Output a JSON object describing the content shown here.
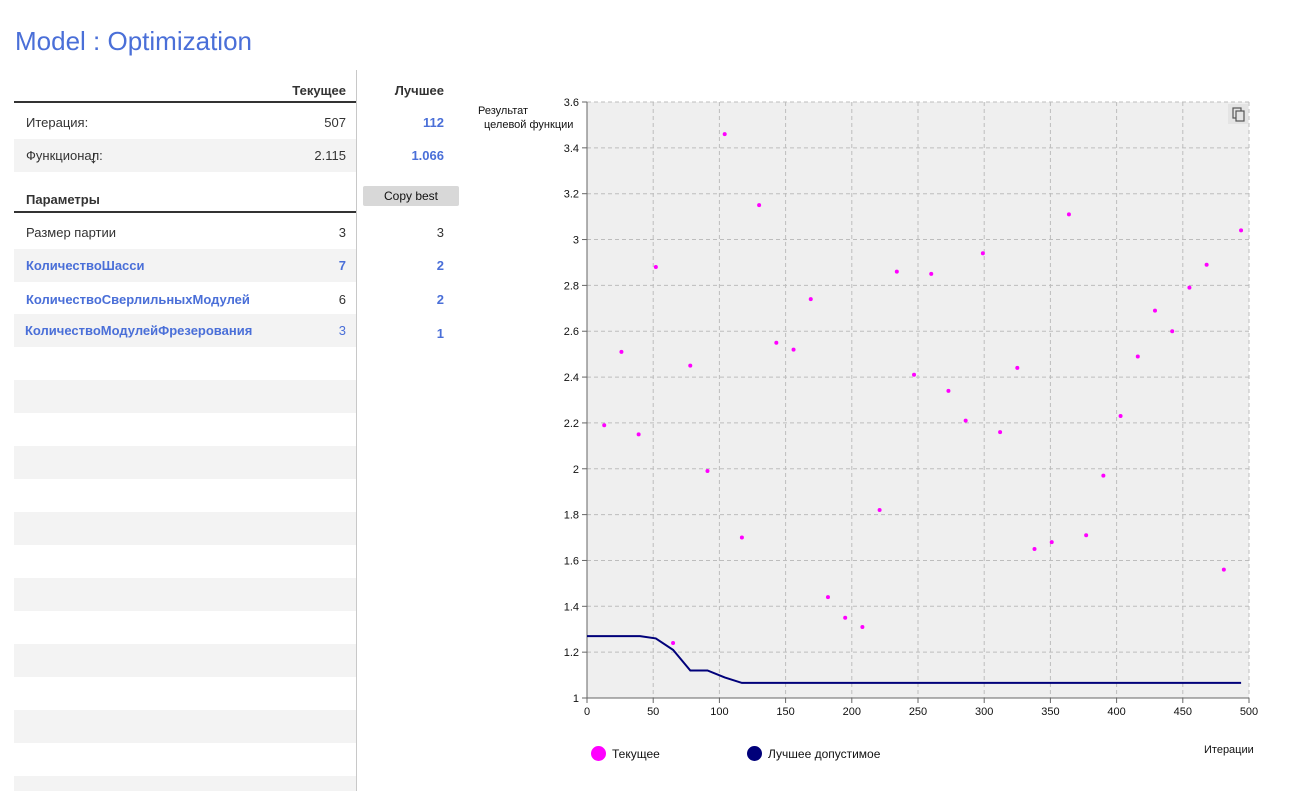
{
  "page": {
    "title": "Model : Optimization"
  },
  "table": {
    "col_current": "Текущее",
    "col_best": "Лучшее",
    "rows": [
      {
        "label": "Итерация:",
        "current": "507",
        "best": "112"
      },
      {
        "label": "Функционал:",
        "current": "2.115",
        "best": "1.066"
      }
    ],
    "params_header": "Параметры",
    "copy_best": "Copy best",
    "params": [
      {
        "label": "Размер партии",
        "current": "3",
        "best": "3"
      },
      {
        "label": "КоличествоШасси",
        "current": "7",
        "best": "2"
      },
      {
        "label": "КоличествоСверлильныхМодулей",
        "current": "6",
        "best": "2"
      },
      {
        "label": "КоличествоМодулейФрезерования",
        "current": "3",
        "best": "1"
      }
    ]
  },
  "chart_data": {
    "type": "scatter",
    "ylabel_line1": "Результат",
    "ylabel_line2": "целевой функции",
    "xlabel": "Итерации",
    "xlim": [
      0,
      500
    ],
    "ylim": [
      1,
      3.6
    ],
    "x_ticks": [
      0,
      50,
      100,
      150,
      200,
      250,
      300,
      350,
      400,
      450,
      500
    ],
    "y_ticks": [
      "1",
      "1.2",
      "1.4",
      "1.6",
      "1.8",
      "2",
      "2.2",
      "2.4",
      "2.6",
      "2.8",
      "3",
      "3.2",
      "3.4",
      "3.6"
    ],
    "grid": true,
    "legend_position": "bottom",
    "series": [
      {
        "name": "Текущее",
        "type": "scatter",
        "color": "#ff00ff",
        "points": [
          [
            13,
            2.19
          ],
          [
            26,
            2.51
          ],
          [
            39,
            2.15
          ],
          [
            52,
            2.88
          ],
          [
            65,
            1.24
          ],
          [
            78,
            2.45
          ],
          [
            91,
            1.99
          ],
          [
            104,
            3.46
          ],
          [
            117,
            1.7
          ],
          [
            130,
            3.15
          ],
          [
            143,
            2.55
          ],
          [
            156,
            2.52
          ],
          [
            169,
            2.74
          ],
          [
            182,
            1.44
          ],
          [
            195,
            1.35
          ],
          [
            208,
            1.31
          ],
          [
            221,
            1.82
          ],
          [
            234,
            2.86
          ],
          [
            247,
            2.41
          ],
          [
            260,
            2.85
          ],
          [
            273,
            2.34
          ],
          [
            286,
            2.21
          ],
          [
            299,
            2.94
          ],
          [
            312,
            2.16
          ],
          [
            325,
            2.44
          ],
          [
            338,
            1.65
          ],
          [
            351,
            1.68
          ],
          [
            364,
            3.11
          ],
          [
            377,
            1.71
          ],
          [
            390,
            1.97
          ],
          [
            403,
            2.23
          ],
          [
            416,
            2.49
          ],
          [
            429,
            2.69
          ],
          [
            442,
            2.6
          ],
          [
            455,
            2.79
          ],
          [
            468,
            2.89
          ],
          [
            481,
            1.56
          ],
          [
            494,
            3.04
          ]
        ]
      },
      {
        "name": "Лучшее допустимое",
        "type": "line",
        "color": "#00007a",
        "points": [
          [
            0,
            1.27
          ],
          [
            40,
            1.27
          ],
          [
            52,
            1.26
          ],
          [
            65,
            1.21
          ],
          [
            78,
            1.12
          ],
          [
            91,
            1.12
          ],
          [
            104,
            1.09
          ],
          [
            117,
            1.066
          ],
          [
            494,
            1.066
          ]
        ]
      }
    ]
  }
}
